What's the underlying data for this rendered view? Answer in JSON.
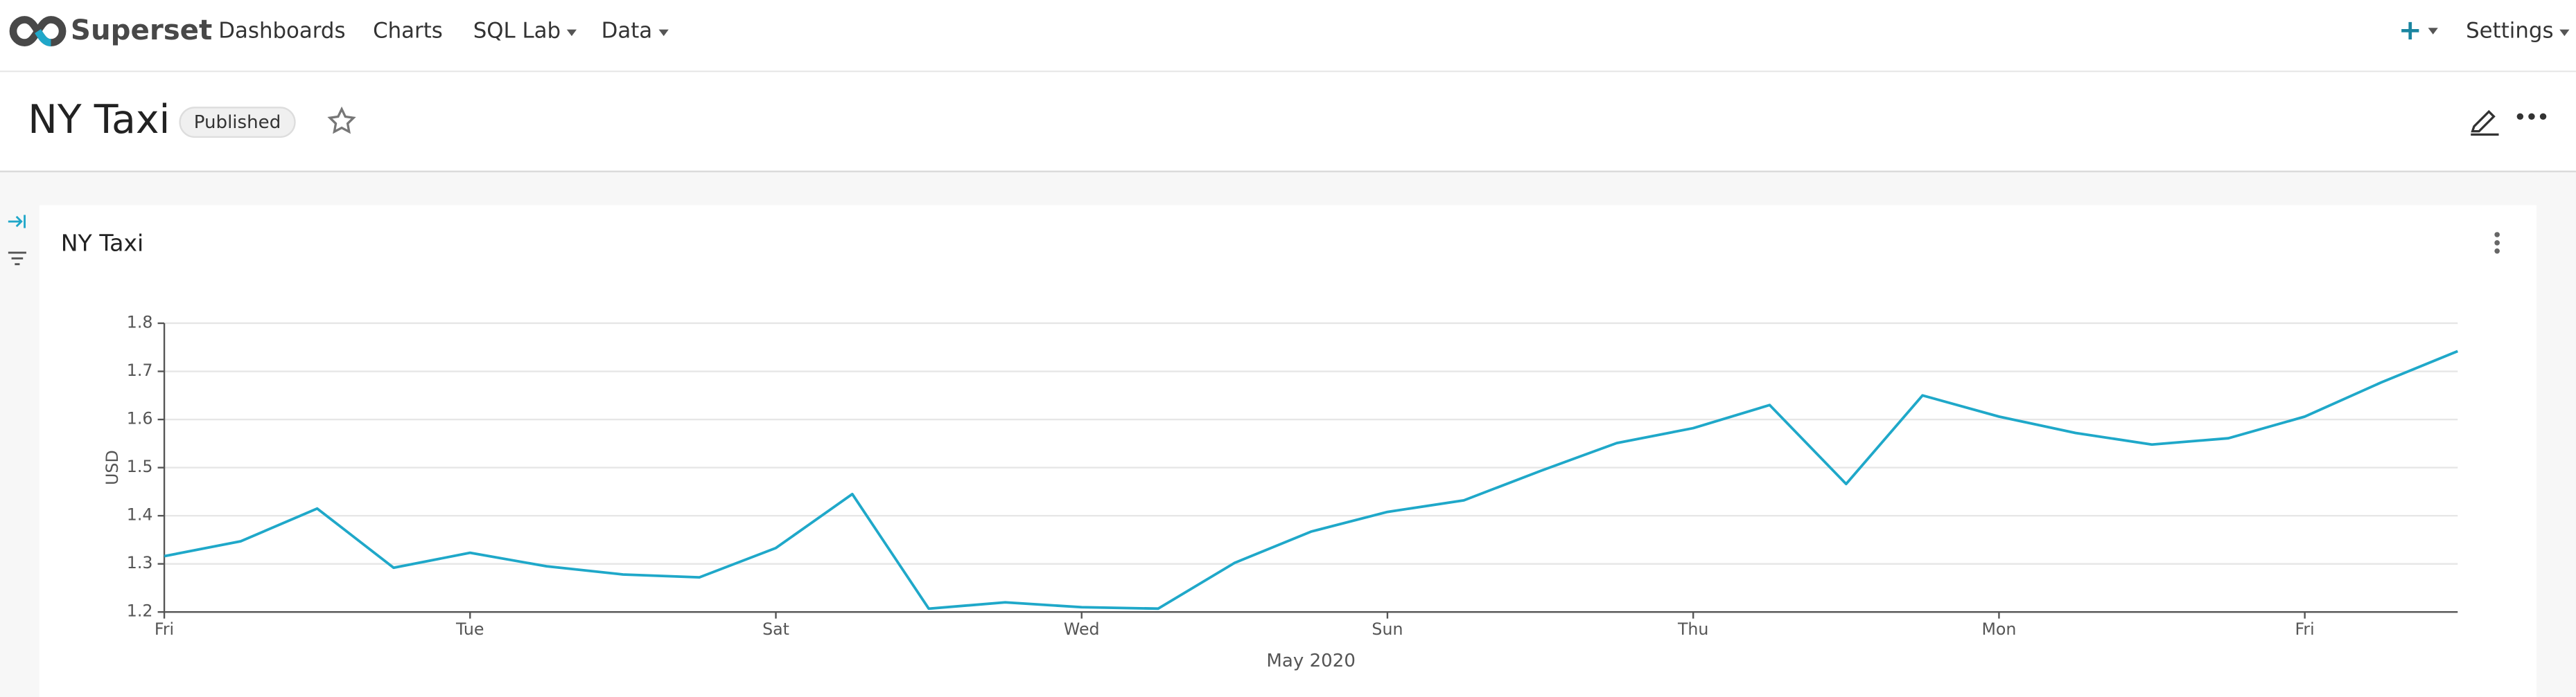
{
  "nav": {
    "brand": "Superset",
    "items": [
      "Dashboards",
      "Charts",
      "SQL Lab",
      "Data"
    ],
    "settings": "Settings"
  },
  "dashboard": {
    "title": "NY Taxi",
    "status": "Published"
  },
  "chart_data": {
    "type": "line",
    "title": "NY Taxi",
    "y_label": "USD",
    "x_label": "May 2020",
    "categories": [
      "Fri",
      null,
      null,
      null,
      "Tue",
      null,
      null,
      null,
      "Sat",
      null,
      null,
      null,
      "Wed",
      null,
      null,
      null,
      "Sun",
      null,
      null,
      null,
      "Thu",
      null,
      null,
      null,
      "Mon",
      null,
      null,
      null,
      "Fri",
      null,
      null
    ],
    "values": [
      1.316,
      1.347,
      1.415,
      1.292,
      1.323,
      1.295,
      1.278,
      1.272,
      1.333,
      1.445,
      1.207,
      1.22,
      1.21,
      1.207,
      1.302,
      1.367,
      1.408,
      1.432,
      1.493,
      1.551,
      1.582,
      1.63,
      1.466,
      1.65,
      1.606,
      1.572,
      1.548,
      1.561,
      1.606,
      1.677,
      1.742
    ],
    "color": "#1fa8c9",
    "ylim": [
      1.2,
      1.8
    ],
    "yticks": [
      1.2,
      1.3,
      1.4,
      1.5,
      1.6,
      1.7,
      1.8
    ],
    "grid": true
  }
}
